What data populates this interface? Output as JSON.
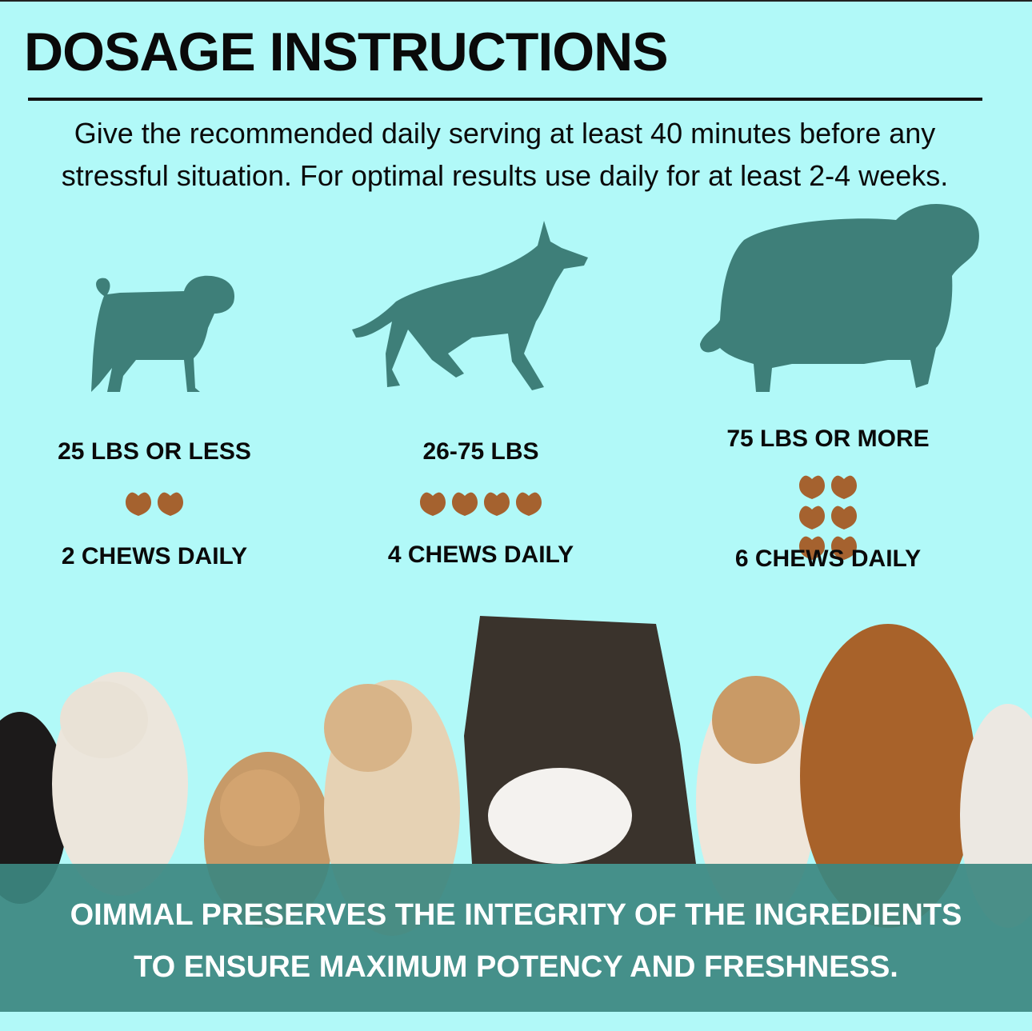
{
  "title": "DOSAGE INSTRUCTIONS",
  "intro": {
    "line1": "Give the recommended daily serving at least 40 minutes before any",
    "line2": "stressful situation. For optimal results use daily for at least 2-4 weeks."
  },
  "colors": {
    "background": "#b1f9f8",
    "silhouette": "#3e7f79",
    "chew": "#a5622f",
    "banner": "#3c8780"
  },
  "dosages": [
    {
      "weight": "25 LBS OR LESS",
      "chews": 2,
      "label": "2 CHEWS DAILY",
      "icon": "small-dog-silhouette-icon"
    },
    {
      "weight": "26-75 LBS",
      "chews": 4,
      "label": "4 CHEWS DAILY",
      "icon": "medium-dog-silhouette-icon"
    },
    {
      "weight": "75 LBS OR MORE",
      "chews": 6,
      "label": "6 CHEWS DAILY",
      "icon": "large-dog-silhouette-icon"
    }
  ],
  "banner": {
    "line1": "OIMMAL PRESERVES THE INTEGRITY OF THE INGREDIENTS",
    "line2": "TO ENSURE MAXIMUM POTENCY AND FRESHNESS."
  }
}
